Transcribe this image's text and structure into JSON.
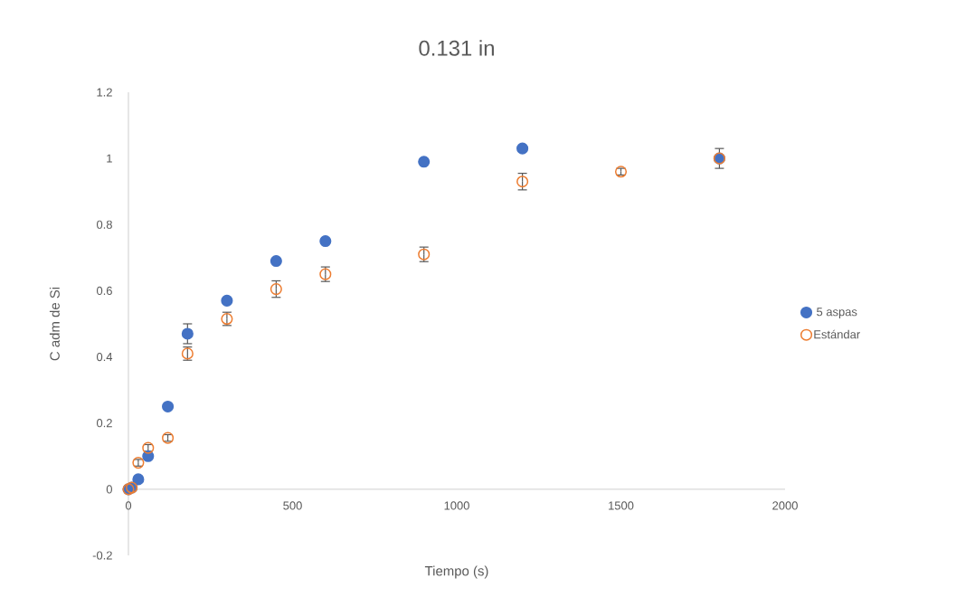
{
  "chart_data": {
    "type": "scatter",
    "title": "0.131 in",
    "xlabel": "Tiempo (s)",
    "ylabel": "C adm de Si",
    "xlim": [
      0,
      2000
    ],
    "xticks": [
      0,
      500,
      1000,
      1500,
      2000
    ],
    "ylim": [
      -0.2,
      1.2
    ],
    "yticks": [
      -0.2,
      0,
      0.2,
      0.4,
      0.6,
      0.8,
      1,
      1.2
    ],
    "grid": false,
    "legend": "right",
    "marker": "circle",
    "series": [
      {
        "name": "5 aspas",
        "color": "#4472c4",
        "x": [
          0,
          10,
          30,
          60,
          120,
          180,
          300,
          450,
          600,
          900,
          1200,
          1800
        ],
        "values": [
          0,
          0.005,
          0.03,
          0.1,
          0.25,
          0.47,
          0.57,
          0.69,
          0.75,
          0.99,
          1.03,
          1.0
        ],
        "errors": [
          null,
          null,
          null,
          null,
          null,
          0.03,
          null,
          null,
          null,
          null,
          null,
          null
        ]
      },
      {
        "name": "Estándar",
        "color": "#ed7d31",
        "x": [
          0,
          10,
          30,
          60,
          120,
          180,
          300,
          450,
          600,
          900,
          1200,
          1500,
          1800
        ],
        "values": [
          0,
          0.005,
          0.08,
          0.125,
          0.155,
          0.41,
          0.515,
          0.605,
          0.65,
          0.71,
          0.93,
          0.96,
          1.0
        ],
        "errors": [
          null,
          null,
          0.01,
          0.01,
          0.01,
          0.02,
          0.02,
          0.025,
          0.022,
          0.022,
          0.025,
          0.01,
          0.03
        ]
      }
    ]
  }
}
